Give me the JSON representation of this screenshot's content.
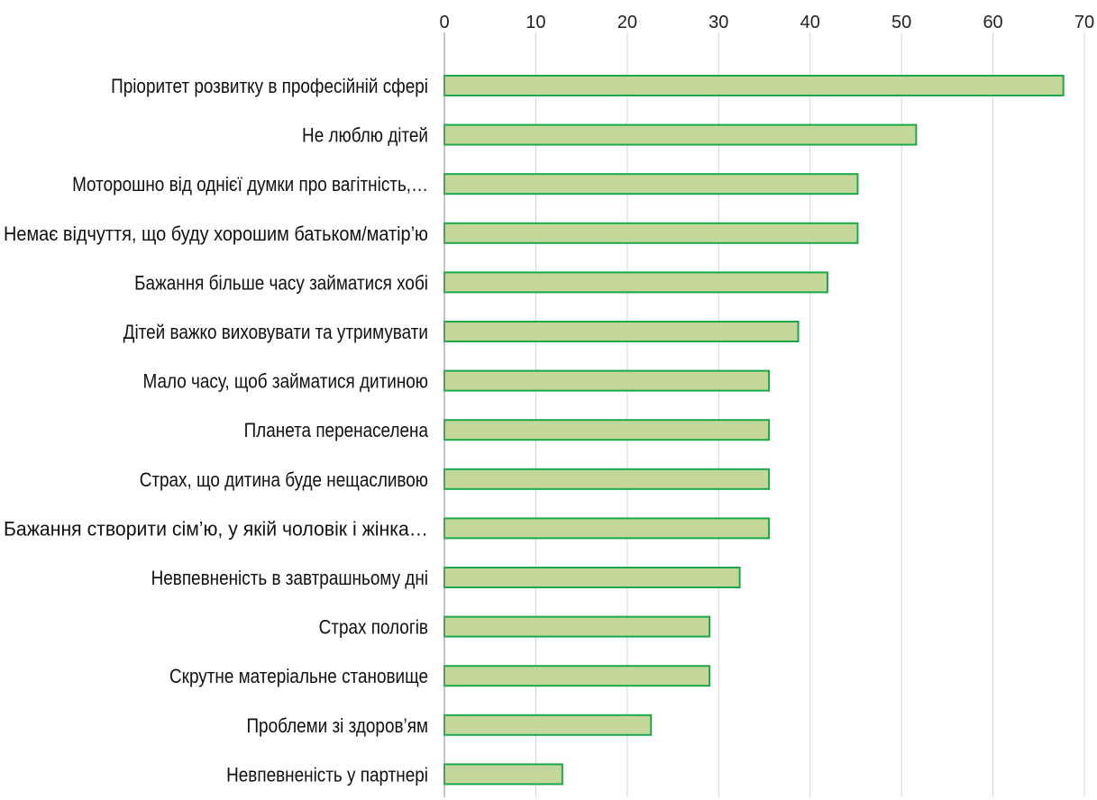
{
  "chart_data": {
    "type": "bar",
    "orientation": "horizontal",
    "categories": [
      "Пріоритет розвитку в професійній сфері",
      "Не люблю  дітей",
      "Моторошно від однієї думки про вагітність,…",
      "Немає відчуття, що буду хорошим батьком/матір’ю",
      "Бажання більше часу займатися хобі",
      "Дітей важко виховувати та утримувати",
      "Мало часу, щоб займатися дитиною",
      "Планета перенаселена",
      "Страх, що дитина буде нещасливою",
      "Бажання створити сім’ю, у якій чоловік і жінка…",
      "Невпевненість в завтрашньому дні",
      "Страх пологів",
      "Скрутне матеріальне становище",
      "Проблеми зі здоров’ям",
      "Невпевненість у партнері"
    ],
    "values": [
      67.7,
      51.6,
      45.2,
      45.2,
      41.9,
      38.7,
      35.5,
      35.5,
      35.5,
      35.5,
      32.3,
      29.0,
      29.0,
      22.6,
      12.9
    ],
    "xlim": [
      0,
      70
    ],
    "x_ticks": [
      "0",
      "10",
      "20",
      "30",
      "40",
      "50",
      "60",
      "70"
    ],
    "x_axis_position": "top",
    "grid": true,
    "legend": "none",
    "title": "",
    "xlabel": "",
    "ylabel": "",
    "colors": {
      "bar_fill": "#c4d79b",
      "bar_stroke": "#1aa84a",
      "grid": "#d4d4d4"
    }
  }
}
